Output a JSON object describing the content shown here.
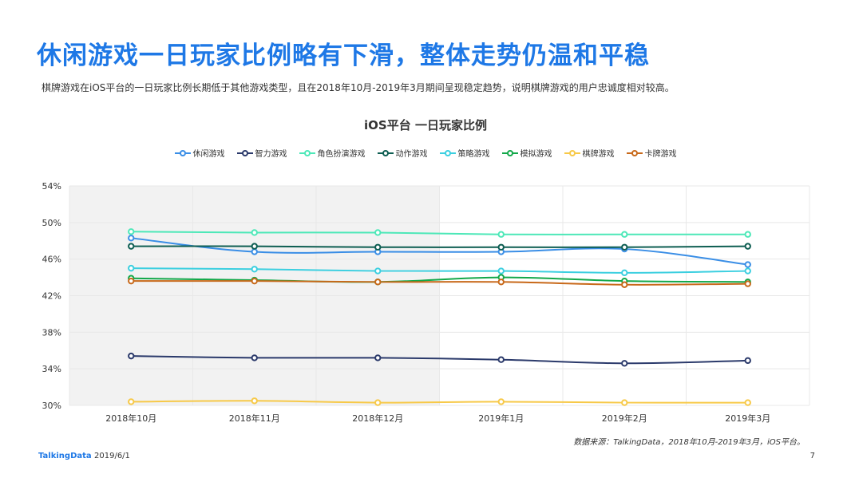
{
  "page": {
    "title": "休闲游戏一日玩家比例略有下滑，整体走势仍温和平稳",
    "subtitle": "棋牌游戏在iOS平台的一日玩家比例长期低于其他游戏类型，且在2018年10月-2019年3月期间呈现稳定趋势，说明棋牌游戏的用户忠诚度相对较高。",
    "source": "数据来源：TalkingData，2018年10月-2019年3月，iOS平台。",
    "brand": "TalkingData",
    "date": "2019/6/1",
    "page_number": "7"
  },
  "chart_data": {
    "type": "line",
    "title": "iOS平台  一日玩家比例",
    "xlabel": "",
    "ylabel": "",
    "categories": [
      "2018年10月",
      "2018年11月",
      "2018年12月",
      "2019年1月",
      "2019年2月",
      "2019年3月"
    ],
    "yticks": [
      "30%",
      "34%",
      "38%",
      "42%",
      "46%",
      "50%",
      "54%"
    ],
    "ytick_values": [
      30,
      34,
      38,
      42,
      46,
      50,
      54
    ],
    "ylim": [
      30,
      54
    ],
    "grid": true,
    "legend_position": "top",
    "shaded_categories": [
      "2018年10月",
      "2018年11月",
      "2018年12月"
    ],
    "series": [
      {
        "name": "休闲游戏",
        "color": "#3a8ee6",
        "values": [
          48.3,
          46.8,
          46.8,
          46.8,
          47.1,
          45.4
        ]
      },
      {
        "name": "智力游戏",
        "color": "#2b3a6b",
        "values": [
          35.4,
          35.2,
          35.2,
          35.0,
          34.6,
          34.9
        ]
      },
      {
        "name": "角色扮演游戏",
        "color": "#4de8b8",
        "values": [
          49.0,
          48.9,
          48.9,
          48.7,
          48.7,
          48.7
        ]
      },
      {
        "name": "动作游戏",
        "color": "#0e5e52",
        "values": [
          47.4,
          47.4,
          47.3,
          47.3,
          47.3,
          47.4
        ]
      },
      {
        "name": "策略游戏",
        "color": "#3ccfe0",
        "values": [
          45.0,
          44.9,
          44.7,
          44.7,
          44.5,
          44.7
        ]
      },
      {
        "name": "模拟游戏",
        "color": "#13a84a",
        "values": [
          43.9,
          43.7,
          43.5,
          44.0,
          43.6,
          43.5
        ]
      },
      {
        "name": "棋牌游戏",
        "color": "#f7c948",
        "values": [
          30.4,
          30.5,
          30.3,
          30.4,
          30.3,
          30.3
        ]
      },
      {
        "name": "卡牌游戏",
        "color": "#c8691a",
        "values": [
          43.6,
          43.6,
          43.5,
          43.5,
          43.2,
          43.3
        ]
      }
    ]
  }
}
